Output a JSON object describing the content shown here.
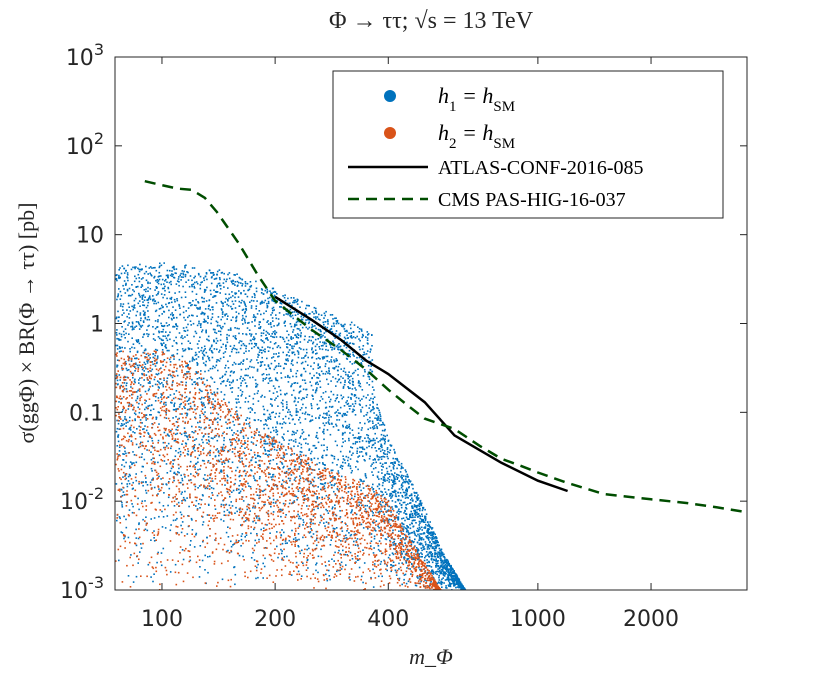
{
  "chart_data": {
    "type": "scatter",
    "title": "Φ → ττ; √s = 13 TeV",
    "xlabel": "m_Φ",
    "ylabel": "σ(ggΦ) × BR(Φ → ττ) [pb]",
    "x_scale": "log",
    "y_scale": "log",
    "xlim": [
      75,
      3600
    ],
    "ylim": [
      0.001,
      1000
    ],
    "x_ticks": [
      {
        "value": 100,
        "label": "100"
      },
      {
        "value": 200,
        "label": "200"
      },
      {
        "value": 400,
        "label": "400"
      },
      {
        "value": 1000,
        "label": "1000"
      },
      {
        "value": 2000,
        "label": "2000"
      }
    ],
    "y_ticks": [
      {
        "value": 0.001,
        "base": "10",
        "exp": "-3"
      },
      {
        "value": 0.01,
        "base": "10",
        "exp": "-2"
      },
      {
        "value": 0.1,
        "base": "0.1",
        "exp": ""
      },
      {
        "value": 1,
        "base": "1",
        "exp": ""
      },
      {
        "value": 10,
        "base": "10",
        "exp": ""
      },
      {
        "value": 100,
        "base": "10",
        "exp": "2"
      },
      {
        "value": 1000,
        "base": "10",
        "exp": "3"
      }
    ],
    "grid": false,
    "legend_position": "top-right",
    "series": [
      {
        "name": "h1 = hSM",
        "legend_main": "h",
        "legend_sub": "1",
        "legend_rest": " = h",
        "legend_sub2": "SM",
        "kind": "scatter",
        "color": "#0072BD",
        "region": {
          "x_range": [
            75,
            650
          ],
          "upper_envelope": [
            [
              75,
              4.5
            ],
            [
              100,
              5
            ],
            [
              150,
              4
            ],
            [
              200,
              2.5
            ],
            [
              250,
              1.6
            ],
            [
              300,
              1.2
            ],
            [
              360,
              0.8
            ],
            [
              362,
              0.2
            ],
            [
              400,
              0.05
            ],
            [
              450,
              0.02
            ],
            [
              500,
              0.008
            ],
            [
              550,
              0.003
            ],
            [
              640,
              0.001
            ]
          ],
          "lower_bound": 0.001
        }
      },
      {
        "name": "h2 = hSM",
        "legend_main": "h",
        "legend_sub": "2",
        "legend_rest": " = h",
        "legend_sub2": "SM",
        "kind": "scatter",
        "color": "#D95319",
        "region": {
          "x_range": [
            75,
            560
          ],
          "upper_envelope": [
            [
              75,
              0.5
            ],
            [
              100,
              0.5
            ],
            [
              120,
              0.35
            ],
            [
              150,
              0.12
            ],
            [
              200,
              0.05
            ],
            [
              250,
              0.03
            ],
            [
              300,
              0.02
            ],
            [
              360,
              0.015
            ],
            [
              400,
              0.01
            ],
            [
              450,
              0.004
            ],
            [
              500,
              0.002
            ],
            [
              550,
              0.001
            ]
          ],
          "lower_bound": 0.001
        }
      },
      {
        "name": "ATLAS-CONF-2016-085",
        "kind": "line",
        "color": "#000000",
        "dash": "solid",
        "x": [
          200,
          250,
          300,
          350,
          400,
          500,
          600,
          800,
          1000,
          1200
        ],
        "y": [
          2.0,
          1.1,
          0.65,
          0.38,
          0.27,
          0.13,
          0.055,
          0.027,
          0.017,
          0.013
        ]
      },
      {
        "name": "CMS PAS-HIG-16-037",
        "kind": "line",
        "color": "#004D00",
        "dash": "dashed",
        "x": [
          90,
          100,
          110,
          120,
          130,
          140,
          160,
          180,
          200,
          250,
          300,
          350,
          400,
          450,
          500,
          600,
          700,
          800,
          900,
          1000,
          1200,
          1500,
          2000,
          2500,
          3000,
          3600
        ],
        "y": [
          40,
          36,
          33,
          32,
          26,
          18,
          8,
          3.5,
          1.8,
          0.85,
          0.5,
          0.3,
          0.18,
          0.12,
          0.085,
          0.065,
          0.042,
          0.03,
          0.025,
          0.021,
          0.016,
          0.012,
          0.0105,
          0.0095,
          0.0085,
          0.0075
        ]
      }
    ]
  }
}
